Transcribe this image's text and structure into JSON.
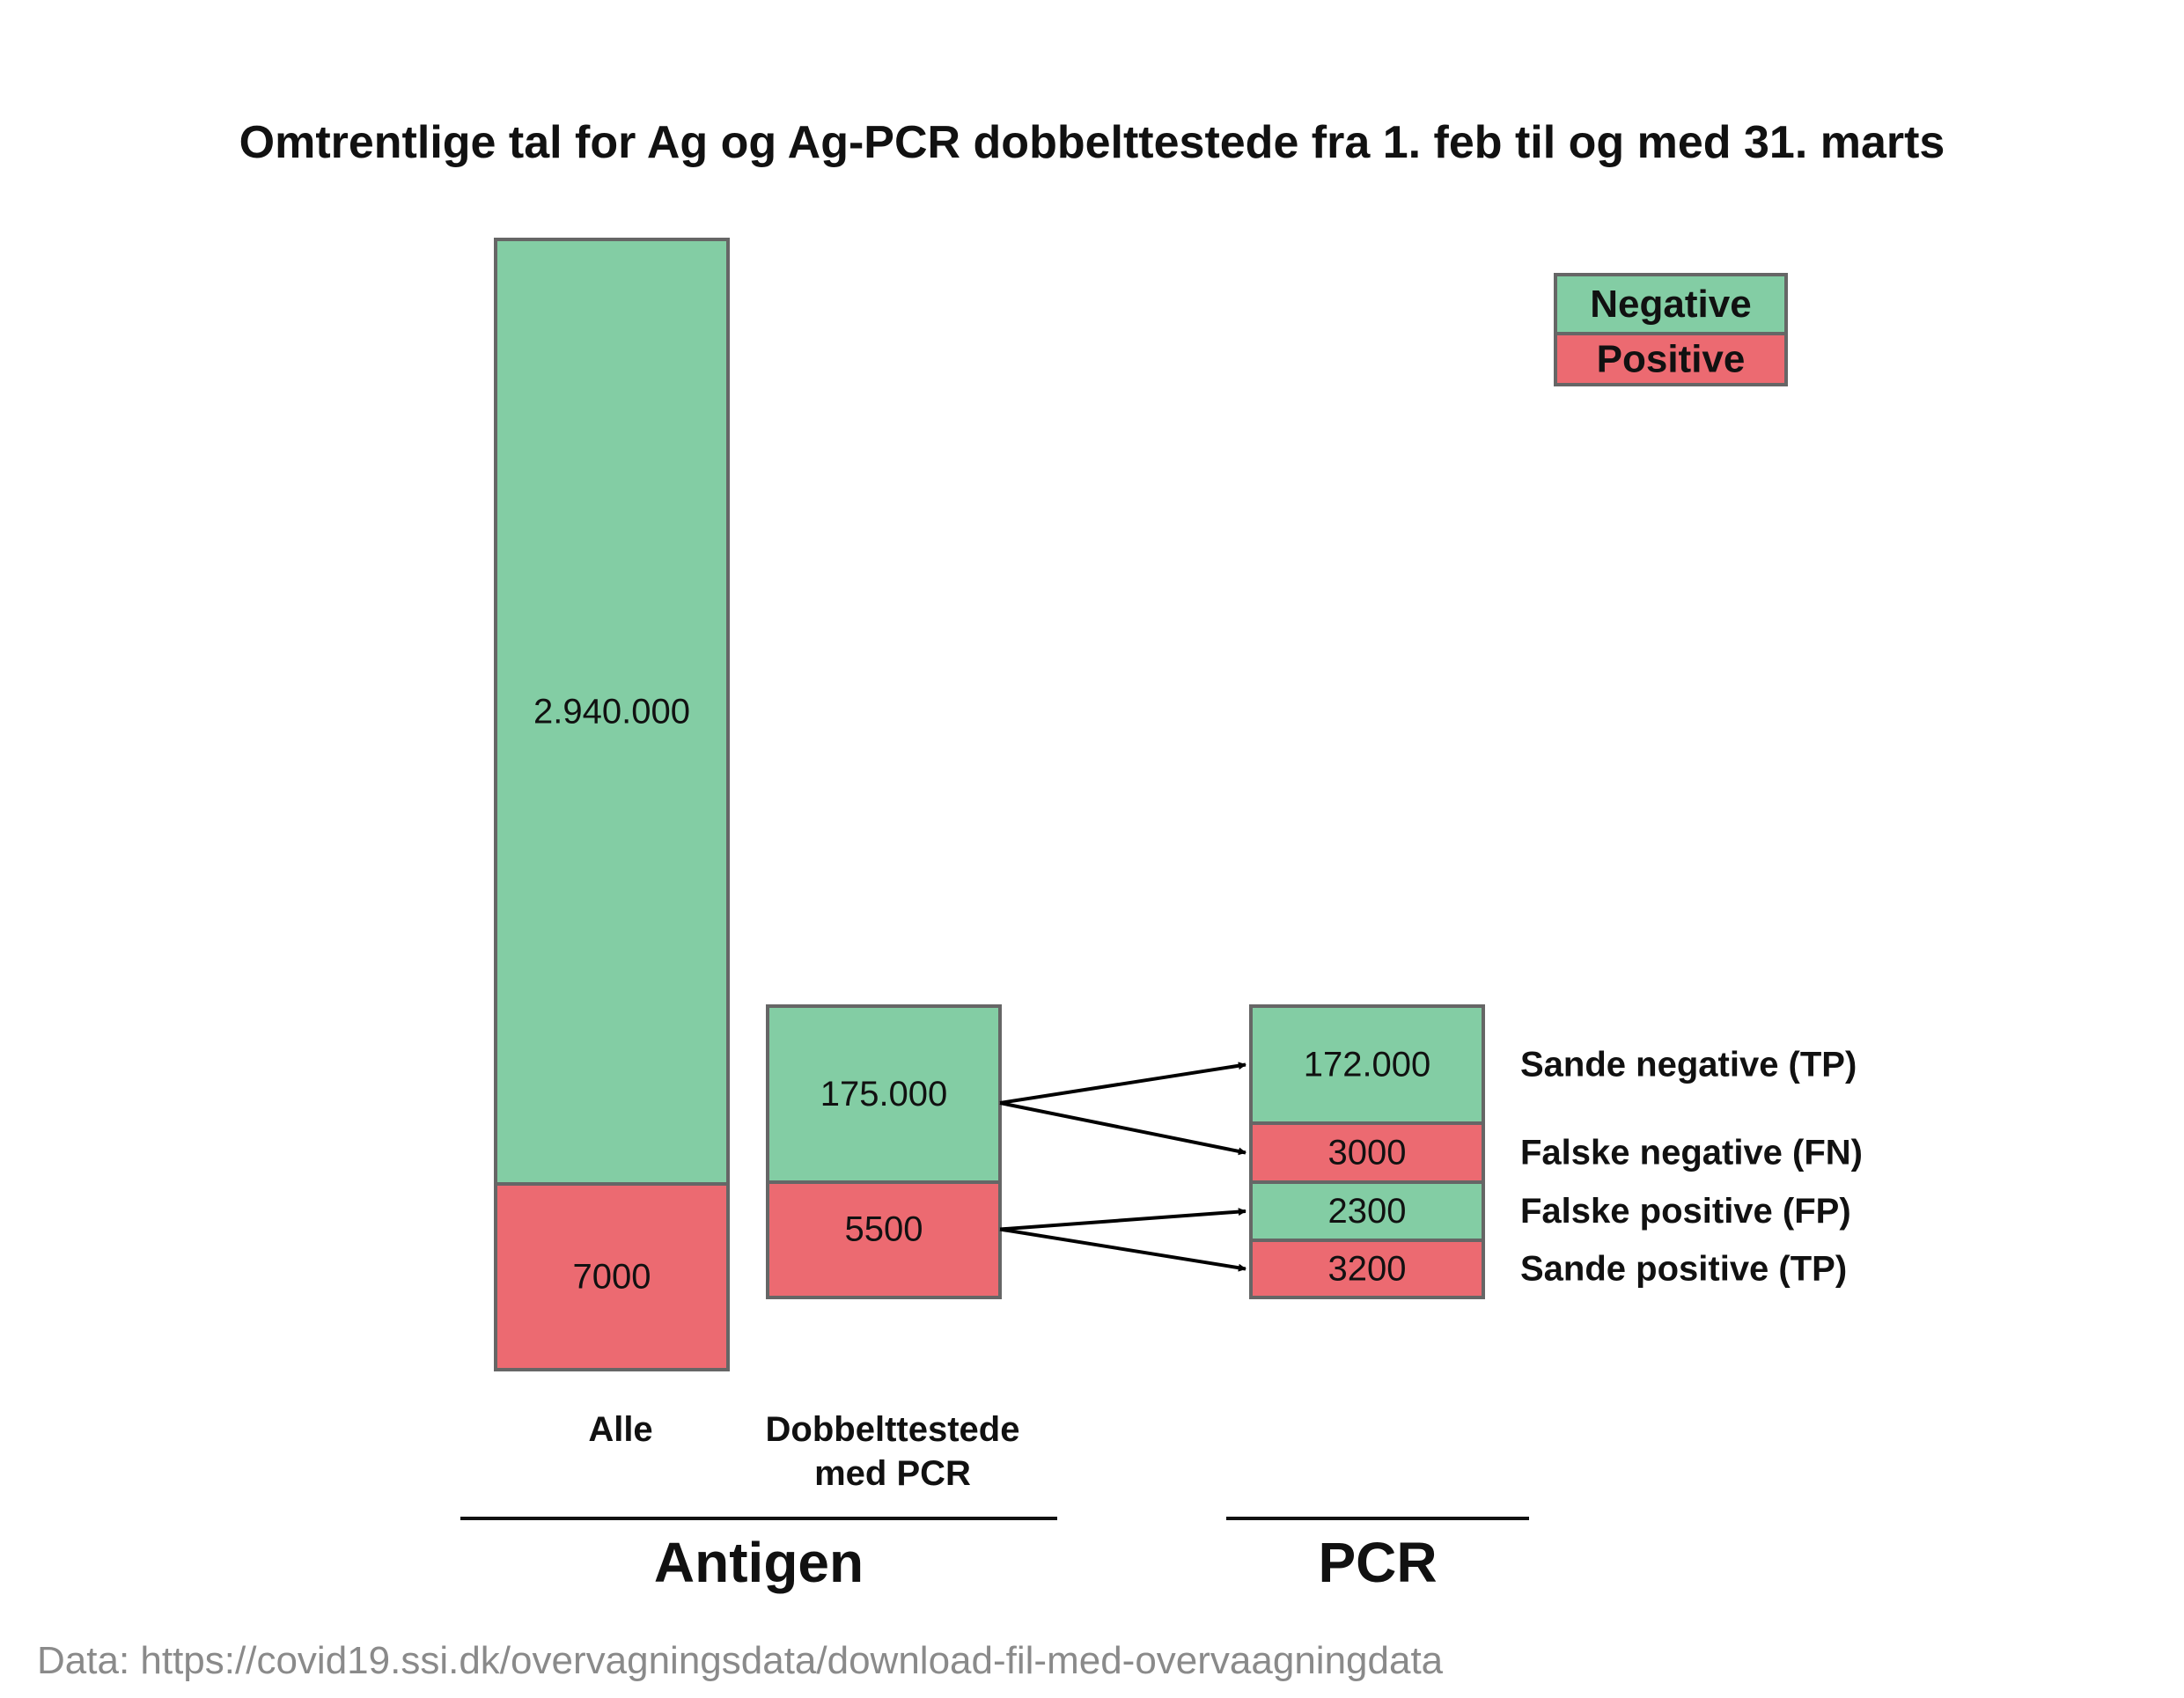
{
  "title": "Omtrentlige tal for Ag og Ag-PCR dobbelttestede fra 1. feb til og med 31. marts",
  "source": "Data: https://covid19.ssi.dk/overvagningsdata/download-fil-med-overvaagningdata",
  "colors": {
    "negative": "#83CDA4",
    "positive": "#EC6A71",
    "border": "#666666",
    "arrow": "#000000"
  },
  "legend": {
    "negative": "Negative",
    "positive": "Positive"
  },
  "chart_data": {
    "type": "bar",
    "stacked": true,
    "title": "Omtrentlige tal for Ag og Ag-PCR dobbelttestede fra 1. feb til og med 31. marts",
    "bars": [
      {
        "category": "Alle",
        "group": "Antigen",
        "segments": [
          {
            "label": "2.940.000",
            "value": 2940000,
            "class": "negative"
          },
          {
            "label": "7000",
            "value": 7000,
            "class": "positive"
          }
        ]
      },
      {
        "category": "Dobbelttestede med PCR",
        "category_lines": [
          "Dobbelttestede",
          "med PCR"
        ],
        "group": "Antigen",
        "segments": [
          {
            "label": "175.000",
            "value": 175000,
            "class": "negative"
          },
          {
            "label": "5500",
            "value": 5500,
            "class": "positive"
          }
        ]
      },
      {
        "category": "",
        "group": "PCR",
        "segments": [
          {
            "label": "172.000",
            "value": 172000,
            "class": "negative",
            "row_label": "Sande negative (TP)"
          },
          {
            "label": "3000",
            "value": 3000,
            "class": "positive",
            "row_label": "Falske negative (FN)"
          },
          {
            "label": "2300",
            "value": 2300,
            "class": "negative",
            "row_label": "Falske positive (FP)"
          },
          {
            "label": "3200",
            "value": 3200,
            "class": "positive",
            "row_label": "Sande positive (TP)"
          }
        ]
      }
    ],
    "groups": [
      "Antigen",
      "PCR"
    ],
    "flows": [
      {
        "from": "175.000",
        "to": [
          "172.000",
          "3000"
        ]
      },
      {
        "from": "5500",
        "to": [
          "2300",
          "3200"
        ]
      }
    ],
    "legend_position": "top-right"
  }
}
